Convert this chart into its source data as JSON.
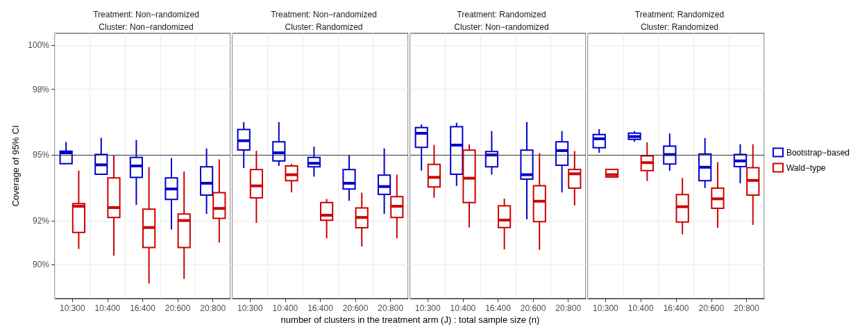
{
  "chart_data": [
    {
      "type": "box",
      "title": "Treatment: Non−randomized",
      "subtitle": "Cluster: Non−randomized",
      "xlabel": "number of clusters in the treatment arm (J) : total sample size (n)",
      "ylabel": "Coverage of 95% CI",
      "categories": [
        "10:300",
        "10:400",
        "16:400",
        "20:600",
        "20:800"
      ],
      "series": [
        {
          "color": "#0000cd",
          "boxes": [
            {
              "low": 94.6,
              "q1": 94.6,
              "median": 95.1,
              "q3": 95.17,
              "high": 95.59
            },
            {
              "low": 94.12,
              "q1": 94.12,
              "median": 94.55,
              "q3": 95.02,
              "high": 95.78
            },
            {
              "low": 92.72,
              "q1": 93.98,
              "median": 94.5,
              "q3": 94.89,
              "high": 95.68
            },
            {
              "low": 91.6,
              "q1": 92.97,
              "median": 93.45,
              "q3": 93.95,
              "high": 94.86
            },
            {
              "low": 92.31,
              "q1": 93.17,
              "median": 93.71,
              "q3": 94.46,
              "high": 95.3
            }
          ]
        },
        {
          "color": "#cd0000",
          "boxes": [
            {
              "low": 90.71,
              "q1": 91.47,
              "median": 92.66,
              "q3": 92.78,
              "high": 94.29
            },
            {
              "low": 90.41,
              "q1": 92.15,
              "median": 92.6,
              "q3": 93.95,
              "high": 95.0
            },
            {
              "low": 89.13,
              "q1": 90.78,
              "median": 91.69,
              "q3": 92.53,
              "high": 94.45
            },
            {
              "low": 89.35,
              "q1": 90.78,
              "median": 92.01,
              "q3": 92.31,
              "high": 94.25
            },
            {
              "low": 91.0,
              "q1": 92.11,
              "median": 92.56,
              "q3": 93.28,
              "high": 94.8
            }
          ]
        }
      ],
      "ylim": [
        88.45,
        100.55
      ],
      "yticks": [
        {
          "value": 90,
          "label": "90%"
        },
        {
          "value": 92,
          "label": "92%"
        },
        {
          "value": 95,
          "label": "95%"
        },
        {
          "value": 98,
          "label": "98%"
        },
        {
          "value": 100,
          "label": "100%"
        }
      ],
      "grid": true,
      "ref_lines": [
        {
          "axis": "y",
          "value": 95,
          "color": "#333333"
        }
      ]
    },
    {
      "type": "box",
      "title": "Treatment: Non−randomized",
      "subtitle": "Cluster: Randomized",
      "categories": [
        "10:300",
        "10:400",
        "16:400",
        "20:600",
        "20:800"
      ],
      "series": [
        {
          "color": "#0000cd",
          "boxes": [
            {
              "low": 94.4,
              "q1": 95.23,
              "median": 95.65,
              "q3": 96.16,
              "high": 96.5
            },
            {
              "low": 94.5,
              "q1": 94.73,
              "median": 95.1,
              "q3": 95.6,
              "high": 96.5
            },
            {
              "low": 94.01,
              "q1": 94.46,
              "median": 94.62,
              "q3": 94.89,
              "high": 95.38
            },
            {
              "low": 92.91,
              "q1": 93.45,
              "median": 93.71,
              "q3": 94.33,
              "high": 95.0
            },
            {
              "low": 92.31,
              "q1": 93.2,
              "median": 93.56,
              "q3": 94.08,
              "high": 95.3
            }
          ]
        },
        {
          "color": "#cd0000",
          "boxes": [
            {
              "low": 91.9,
              "q1": 93.04,
              "median": 93.59,
              "q3": 94.33,
              "high": 95.19
            },
            {
              "low": 93.29,
              "q1": 93.83,
              "median": 94.1,
              "q3": 94.5,
              "high": 94.59
            },
            {
              "low": 91.2,
              "q1": 92.02,
              "median": 92.25,
              "q3": 92.83,
              "high": 92.99
            },
            {
              "low": 90.82,
              "q1": 91.68,
              "median": 92.15,
              "q3": 92.58,
              "high": 93.28
            },
            {
              "low": 91.2,
              "q1": 92.15,
              "median": 92.66,
              "q3": 93.1,
              "high": 94.1
            }
          ]
        }
      ],
      "ylim": [
        88.45,
        100.55
      ],
      "yticks": [
        90,
        92,
        95,
        98,
        100
      ],
      "grid": true,
      "tick_labels": "x",
      "ref_lines": [
        {
          "axis": "y",
          "value": 95,
          "color": "#333333"
        }
      ]
    },
    {
      "type": "box",
      "title": "Treatment: Randomized",
      "subtitle": "Cluster: Non−randomized",
      "categories": [
        "10:300",
        "10:400",
        "16:400",
        "20:600",
        "20:800"
      ],
      "series": [
        {
          "color": "#0000cd",
          "boxes": [
            {
              "low": 94.29,
              "q1": 95.35,
              "median": 95.99,
              "q3": 96.25,
              "high": 96.39
            },
            {
              "low": 93.59,
              "q1": 94.12,
              "median": 95.45,
              "q3": 96.29,
              "high": 96.47
            },
            {
              "low": 94.1,
              "q1": 94.46,
              "median": 95.0,
              "q3": 95.16,
              "high": 96.09
            },
            {
              "low": 92.07,
              "q1": 93.9,
              "median": 94.1,
              "q3": 95.22,
              "high": 96.5
            },
            {
              "low": 93.29,
              "q1": 94.53,
              "median": 95.2,
              "q3": 95.6,
              "high": 96.09
            }
          ]
        },
        {
          "color": "#cd0000",
          "boxes": [
            {
              "low": 93.05,
              "q1": 93.54,
              "median": 93.98,
              "q3": 94.57,
              "high": 95.46
            },
            {
              "low": 91.69,
              "q1": 92.83,
              "median": 93.94,
              "q3": 95.22,
              "high": 95.48
            },
            {
              "low": 90.69,
              "q1": 91.69,
              "median": 92.03,
              "q3": 92.68,
              "high": 93.01
            },
            {
              "low": 90.67,
              "q1": 91.96,
              "median": 92.89,
              "q3": 93.6,
              "high": 95.08
            },
            {
              "low": 92.7,
              "q1": 93.49,
              "median": 94.14,
              "q3": 94.34,
              "high": 95.18
            }
          ]
        }
      ],
      "ylim": [
        88.45,
        100.55
      ],
      "yticks": [
        90,
        92,
        95,
        98,
        100
      ],
      "grid": true,
      "tick_labels": "x",
      "ref_lines": [
        {
          "axis": "y",
          "value": 95,
          "color": "#333333"
        }
      ]
    },
    {
      "type": "box",
      "title": "Treatment: Randomized",
      "subtitle": "Cluster: Randomized",
      "categories": [
        "10:300",
        "10:400",
        "16:400",
        "20:600",
        "20:800"
      ],
      "series": [
        {
          "name": "Bootstrap−based",
          "color": "#0000cd",
          "boxes": [
            {
              "low": 95.1,
              "q1": 95.33,
              "median": 95.74,
              "q3": 95.93,
              "high": 96.18
            },
            {
              "low": 95.6,
              "q1": 95.71,
              "median": 95.84,
              "q3": 96.0,
              "high": 96.09
            },
            {
              "low": 94.28,
              "q1": 94.59,
              "median": 95.02,
              "q3": 95.4,
              "high": 95.98
            },
            {
              "low": 93.49,
              "q1": 93.83,
              "median": 94.44,
              "q3": 95.05,
              "high": 95.77
            },
            {
              "low": 93.71,
              "q1": 94.47,
              "median": 94.73,
              "q3": 95.02,
              "high": 95.49
            }
          ]
        },
        {
          "name": "Wald−type",
          "color": "#cd0000",
          "boxes": [
            {
              "low": 93.99,
              "q1": 93.99,
              "median": 94.1,
              "q3": 94.34,
              "high": 94.37
            },
            {
              "low": 93.81,
              "q1": 94.29,
              "median": 94.65,
              "q3": 94.96,
              "high": 95.58
            },
            {
              "low": 91.38,
              "q1": 91.94,
              "median": 92.64,
              "q3": 93.19,
              "high": 93.95
            },
            {
              "low": 91.68,
              "q1": 92.57,
              "median": 93.0,
              "q3": 93.49,
              "high": 94.67
            },
            {
              "low": 91.81,
              "q1": 93.17,
              "median": 93.84,
              "q3": 94.42,
              "high": 95.49
            }
          ]
        }
      ],
      "ylim": [
        88.45,
        100.55
      ],
      "yticks": [
        90,
        92,
        95,
        98,
        100
      ],
      "grid": true,
      "tick_labels": "x",
      "legend": "right",
      "ref_lines": [
        {
          "axis": "y",
          "value": 95,
          "color": "#333333"
        }
      ]
    }
  ]
}
